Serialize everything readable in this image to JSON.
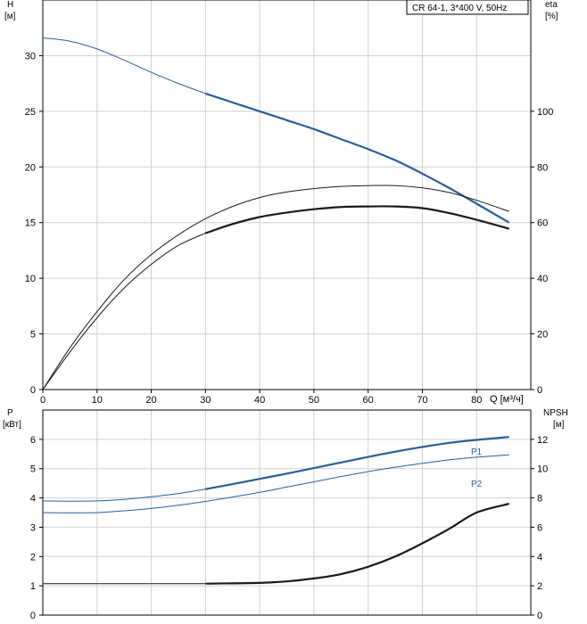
{
  "chart_data": [
    {
      "type": "line",
      "title": "CR 64-1, 3*400 V, 50Hz",
      "xlabel": "Q [м³/ч]",
      "xlim": [
        0,
        90
      ],
      "xticks": [
        0,
        10,
        20,
        30,
        40,
        50,
        60,
        70,
        80
      ],
      "left_axis": {
        "label": "H",
        "unit": "[м]",
        "ylim": [
          0,
          35
        ],
        "ticks": [
          0,
          5,
          10,
          15,
          20,
          25,
          30
        ]
      },
      "right_axis": {
        "label": "eta",
        "unit": "[%]",
        "ylim": [
          0,
          140
        ],
        "ticks": [
          0,
          20,
          40,
          60,
          80,
          100
        ]
      },
      "grid": true,
      "series": [
        {
          "axis": "left",
          "color": "#2a5d9a",
          "x": [
            0,
            5,
            10,
            15,
            20,
            25,
            30,
            35,
            40,
            45,
            50,
            55,
            60,
            65,
            70,
            75,
            80,
            86
          ],
          "y": [
            31.6,
            31.3,
            30.6,
            29.6,
            28.5,
            27.5,
            26.6,
            25.8,
            25.0,
            24.2,
            23.4,
            22.5,
            21.6,
            20.6,
            19.4,
            18.1,
            16.7,
            15.0
          ],
          "thin_until": 30
        },
        {
          "axis": "right",
          "color": "#1a1a1a",
          "x": [
            0,
            5,
            10,
            15,
            20,
            25,
            30,
            35,
            40,
            45,
            50,
            55,
            60,
            65,
            70,
            75,
            80,
            86
          ],
          "y": [
            0,
            15,
            28,
            39.5,
            48.5,
            55.6,
            61.4,
            65.8,
            69.0,
            71.0,
            72.2,
            73.0,
            73.3,
            73.3,
            72.5,
            70.8,
            68.0,
            64.0
          ],
          "thin_until": 86
        },
        {
          "axis": "right",
          "color": "#1a1a1a",
          "x": [
            0,
            5,
            10,
            15,
            20,
            25,
            30,
            35,
            40,
            45,
            50,
            55,
            60,
            65,
            70,
            75,
            80,
            86
          ],
          "y": [
            0,
            13.5,
            25.8,
            36.5,
            45.0,
            51.8,
            56.2,
            59.5,
            62.0,
            63.6,
            64.8,
            65.6,
            65.8,
            65.8,
            65.2,
            63.4,
            61.0,
            57.8
          ],
          "thin_until": 30
        }
      ]
    },
    {
      "type": "line",
      "xlim": [
        0,
        90
      ],
      "left_axis": {
        "label": "P",
        "unit": "[кВт]",
        "ylim": [
          0,
          7
        ],
        "ticks": [
          0,
          1,
          2,
          3,
          4,
          5,
          6
        ]
      },
      "right_axis": {
        "label": "NPSH",
        "unit": "[м]",
        "ylim": [
          0,
          14
        ],
        "ticks": [
          0,
          2,
          4,
          6,
          8,
          10,
          12
        ]
      },
      "grid": true,
      "series": [
        {
          "name": "P1",
          "axis": "left",
          "color": "#2a5d9a",
          "x": [
            0,
            5,
            10,
            15,
            20,
            25,
            30,
            35,
            40,
            45,
            50,
            55,
            60,
            65,
            70,
            75,
            80,
            86
          ],
          "y": [
            3.9,
            3.89,
            3.9,
            3.95,
            4.04,
            4.15,
            4.3,
            4.47,
            4.65,
            4.83,
            5.02,
            5.21,
            5.4,
            5.58,
            5.74,
            5.88,
            5.98,
            6.08
          ],
          "thin_until": 30
        },
        {
          "name": "P2",
          "axis": "left",
          "color": "#2a5d9a",
          "x": [
            0,
            5,
            10,
            15,
            20,
            25,
            30,
            35,
            40,
            45,
            50,
            55,
            60,
            65,
            70,
            75,
            80,
            86
          ],
          "y": [
            3.5,
            3.49,
            3.5,
            3.56,
            3.64,
            3.75,
            3.88,
            4.03,
            4.19,
            4.37,
            4.55,
            4.73,
            4.9,
            5.05,
            5.18,
            5.3,
            5.39,
            5.47
          ],
          "thin_until": 86
        },
        {
          "axis": "right",
          "color": "#1a1a1a",
          "x": [
            0,
            10,
            20,
            30,
            40,
            45,
            50,
            55,
            60,
            65,
            70,
            75,
            80,
            86
          ],
          "y": [
            2.15,
            2.15,
            2.15,
            2.15,
            2.2,
            2.3,
            2.5,
            2.8,
            3.3,
            4.0,
            4.9,
            5.9,
            7.0,
            7.6
          ],
          "thin_until": 30
        }
      ]
    }
  ]
}
